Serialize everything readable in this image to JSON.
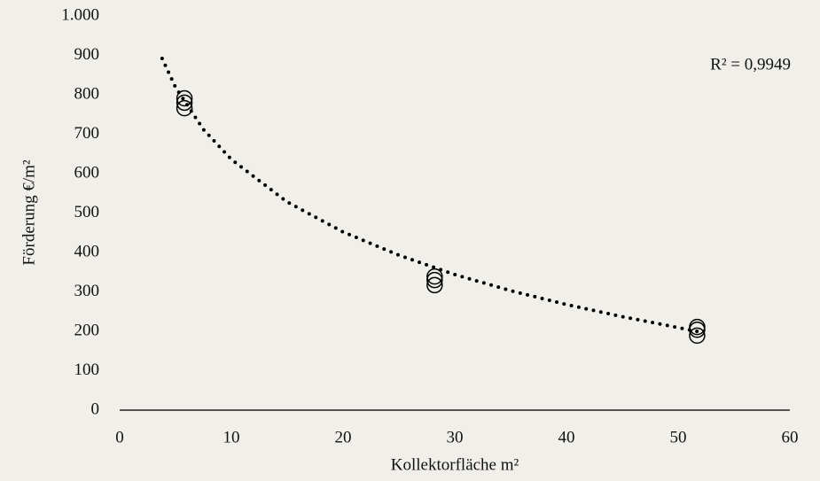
{
  "chart_data": {
    "type": "scatter",
    "x": [
      5.8,
      5.8,
      5.8,
      28.2,
      28.2,
      28.2,
      51.7,
      51.7,
      51.7
    ],
    "values": [
      791,
      780,
      766,
      339,
      330,
      317,
      211,
      204,
      189
    ],
    "color": "#000000",
    "trendline": {
      "x": [
        3.8,
        5,
        7.5,
        10,
        15,
        20,
        25,
        30,
        35,
        40,
        45,
        51.7
      ],
      "values": [
        892,
        819,
        712,
        636,
        528,
        452,
        393,
        344,
        303,
        268,
        237,
        200
      ]
    },
    "annotation": "R² = 0,9949",
    "xlabel": "Kollektorfläche m²",
    "ylabel": "Förderung €/m²",
    "xlim": [
      0,
      60
    ],
    "xticks": [
      0,
      10,
      20,
      30,
      40,
      50,
      60
    ],
    "ylim": [
      0,
      1000
    ],
    "yticks": [
      0,
      100,
      200,
      300,
      400,
      500,
      600,
      700,
      800,
      900,
      {
        "value": 1000,
        "label": "1.000"
      }
    ],
    "grid": false
  }
}
